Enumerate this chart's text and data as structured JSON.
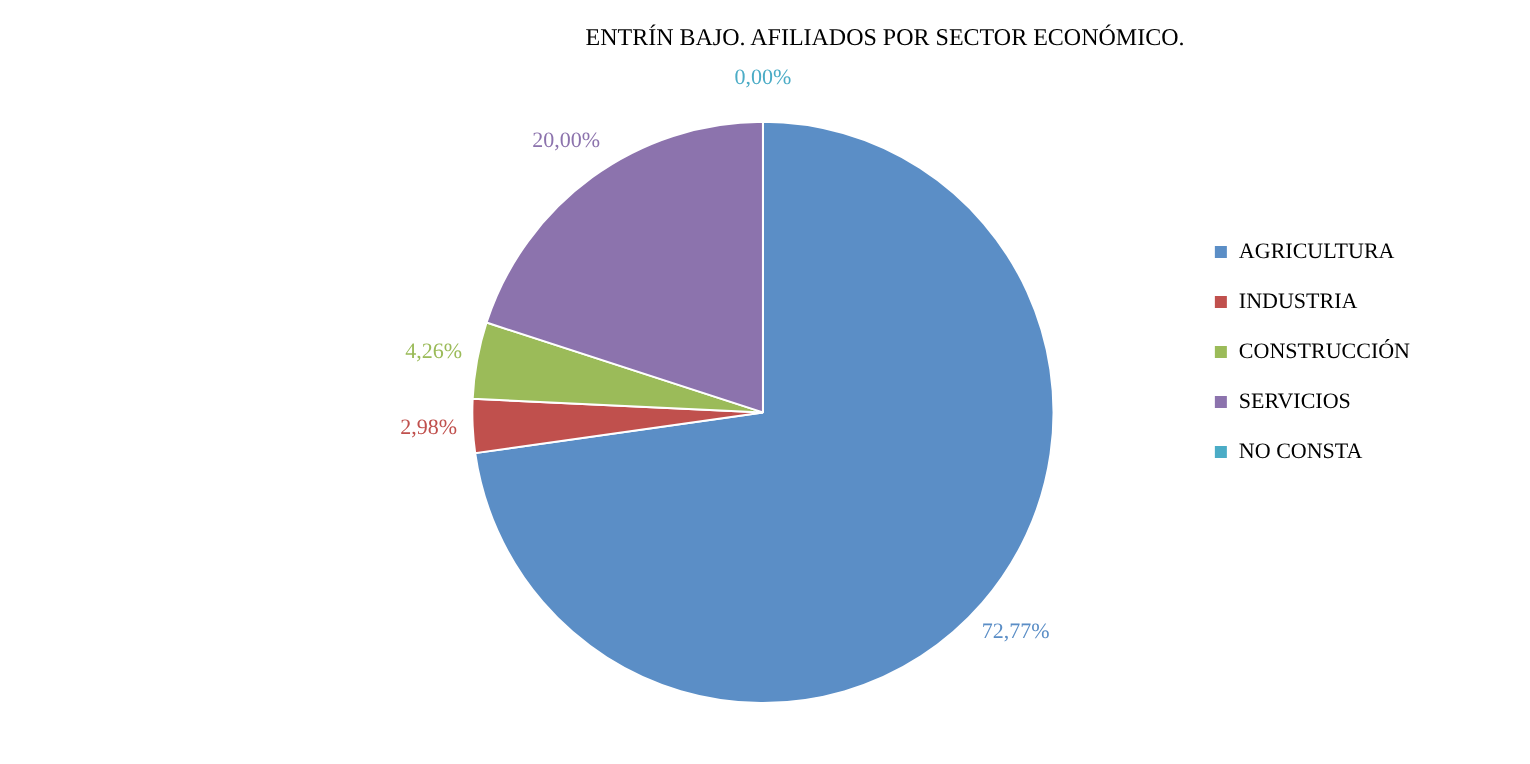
{
  "chart_data": {
    "type": "pie",
    "title": "ENTRÍN BAJO. AFILIADOS POR SECTOR ECONÓMICO.",
    "categories": [
      "AGRICULTURA",
      "INDUSTRIA",
      "CONSTRUCCIÓN",
      "SERVICIOS",
      "NO CONSTA"
    ],
    "values": [
      72.77,
      2.98,
      4.26,
      20.0,
      0.0
    ],
    "value_labels": [
      "72,77%",
      "2,98%",
      "4,26%",
      "20,00%",
      "0,00%"
    ],
    "colors": [
      "#5b8ec6",
      "#c0504d",
      "#9bbb59",
      "#8c73ad",
      "#4bacc6"
    ],
    "legend": "right"
  }
}
